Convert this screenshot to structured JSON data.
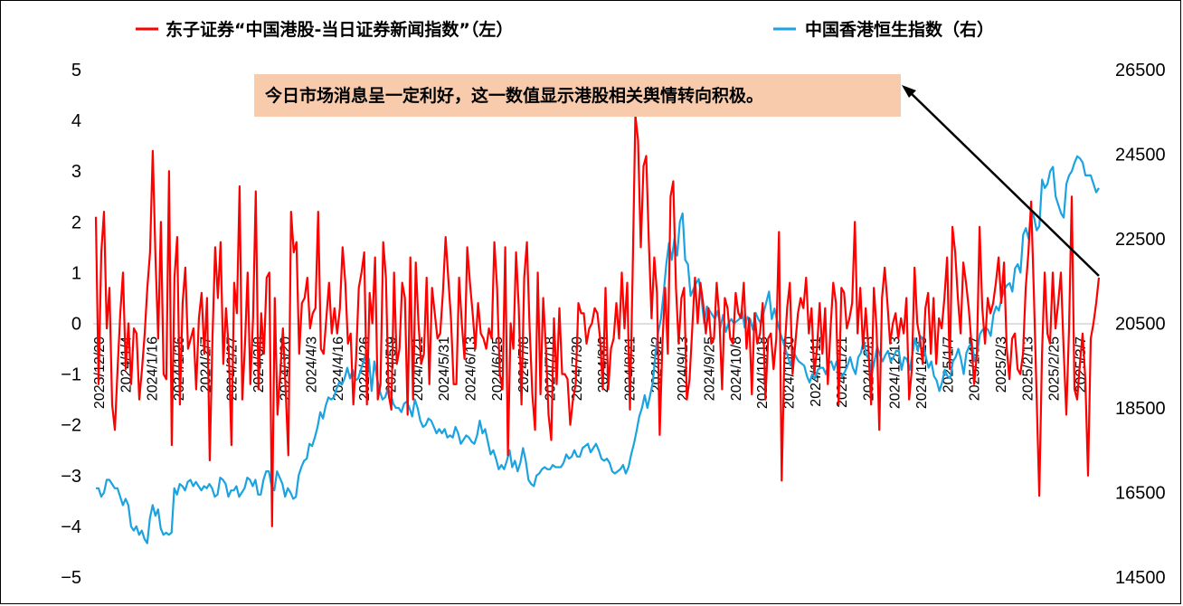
{
  "chart_data": {
    "type": "line",
    "title": "",
    "xlabel": "",
    "ylabel_left": "",
    "ylabel_right": "",
    "left_axis": {
      "min": -5,
      "max": 5,
      "ticks": [
        "5",
        "4",
        "3",
        "2",
        "1",
        "0",
        "−1",
        "−2",
        "−3",
        "−4",
        "−5"
      ]
    },
    "right_axis": {
      "min": 14500,
      "max": 26500,
      "ticks": [
        "26500",
        "24500",
        "22500",
        "20500",
        "18500",
        "16500",
        "14500"
      ]
    },
    "x_tick_labels": [
      "2023/12/20",
      "2024/1/4",
      "2024/1/16",
      "2024/1/26",
      "2024/2/7",
      "2024/2/27",
      "2024/3/8",
      "2024/3/20",
      "2024/4/3",
      "2024/4/16",
      "2024/4/26",
      "2024/5/9",
      "2024/5/21",
      "2024/5/31",
      "2024/6/13",
      "2024/6/25",
      "2024/7/8",
      "2024/7/18",
      "2024/7/30",
      "2024/8/9",
      "2024/8/21",
      "2024/9/2",
      "2024/9/13",
      "2024/9/25",
      "2024/10/8",
      "2024/10/18",
      "2024/10/30",
      "2024/11/11",
      "2024/11/21",
      "2024/12/3",
      "2024/12/13",
      "2024/12/25",
      "2025/1/7",
      "2025/1/17",
      "2025/2/3",
      "2025/2/13",
      "2025/2/25",
      "2025/3/7"
    ],
    "legend_position": "top",
    "grid": false,
    "series": [
      {
        "name": "东子证券“中国港股-当日证券新闻指数”（左）",
        "axis": "left",
        "color": "#ff0000",
        "values": [
          2.1,
          -1.2,
          1.4,
          2.2,
          -0.1,
          0.7,
          -1.6,
          -2.1,
          -0.9,
          0.2,
          1.0,
          -0.9,
          0.0,
          -1.2,
          -0.1,
          -0.2,
          -1.5,
          -0.9,
          -0.2,
          0.7,
          1.4,
          3.4,
          1.3,
          -0.3,
          2.0,
          -1.0,
          -1.1,
          3.0,
          -2.4,
          0.9,
          1.7,
          -1.6,
          0.4,
          1.1,
          -0.5,
          -0.3,
          -0.1,
          -1.3,
          0.1,
          0.6,
          -0.6,
          0.5,
          -2.7,
          -0.3,
          1.5,
          0.5,
          1.6,
          -0.8,
          0.3,
          -0.5,
          -2.4,
          0.8,
          0.2,
          2.7,
          -1.5,
          -0.4,
          1.0,
          -1.2,
          0.1,
          2.6,
          -1.3,
          0.2,
          -0.6,
          0.9,
          1.0,
          -4.0,
          0.5,
          -1.8,
          -1.0,
          -0.1,
          -1.3,
          -2.6,
          2.2,
          1.4,
          1.6,
          -0.6,
          0.4,
          0.5,
          0.9,
          -0.1,
          0.2,
          0.3,
          2.2,
          -0.5,
          -0.6,
          0.1,
          0.8,
          -0.2,
          0.3,
          -0.2,
          0.3,
          1.5,
          0.8,
          -0.4,
          -0.2,
          -1.6,
          -0.7,
          0.7,
          1.0,
          1.4,
          -1.6,
          0.6,
          0.0,
          1.3,
          -1.5,
          -1.2,
          1.6,
          0.9,
          -1.4,
          -1.7,
          1.0,
          -0.8,
          -0.5,
          0.8,
          0.5,
          -1.8,
          1.3,
          -1.5,
          1.2,
          0.0,
          -0.8,
          -0.6,
          0.9,
          -1.2,
          0.7,
          0.2,
          -0.3,
          -0.2,
          0.6,
          1.7,
          0.9,
          0.1,
          -1.2,
          -1.2,
          0.9,
          0.0,
          -0.7,
          1.5,
          0.8,
          0.2,
          -0.5,
          0.4,
          -0.2,
          -0.3,
          -0.5,
          -0.1,
          -0.3,
          1.6,
          0.7,
          -1.0,
          -1.3,
          1.5,
          -2.6,
          0.0,
          -0.5,
          1.4,
          0.3,
          -1.6,
          0.9,
          1.6,
          -0.1,
          -1.4,
          -2.1,
          1.0,
          -1.4,
          0.5,
          -0.5,
          -1.8,
          -2.3,
          0.1,
          -1.2,
          0.3,
          -1.0,
          -1.0,
          -1.1,
          -2.0,
          -1.5,
          -1.2,
          0.4,
          0.2,
          0.2,
          -0.4,
          -0.1,
          0.0,
          0.3,
          0.2,
          -0.3,
          -1.3,
          0.7,
          -1.3,
          -0.5,
          -0.3,
          0.4,
          -0.3,
          1.0,
          -0.1,
          0.8,
          -1.7,
          1.0,
          4.1,
          3.6,
          1.5,
          3.1,
          3.3,
          1.6,
          0.1,
          1.3,
          0.6,
          -2.2,
          -0.4,
          0.7,
          -0.6,
          2.5,
          2.8,
          0.7,
          -0.4,
          0.5,
          0.7,
          -1.5,
          -1.1,
          -0.1,
          0.9,
          0.0,
          0.8,
          0.4,
          -0.2,
          0.3,
          -0.4,
          -0.3,
          0.8,
          0.1,
          -1.3,
          0.5,
          0.3,
          -0.3,
          -0.4,
          0.6,
          0.2,
          0.1,
          0.8,
          -0.5,
          0.1,
          -1.4,
          0.2,
          -0.4,
          -0.2,
          0.4,
          -1.5,
          -0.3,
          -0.2,
          -0.9,
          -0.3,
          1.8,
          -3.1,
          -0.6,
          0.3,
          0.8,
          -1.0,
          -0.4,
          0.2,
          0.5,
          0.3,
          0.9,
          -0.2,
          0.3,
          -1.0,
          -0.5,
          0.4,
          -0.6,
          0.3,
          -1.2,
          -0.1,
          0.8,
          0.4,
          -1.6,
          0.7,
          0.6,
          -0.1,
          0.1,
          0.4,
          2.0,
          -0.2,
          0.7,
          -0.5,
          0.3,
          -0.5,
          -1.6,
          0.7,
          -0.1,
          -2.1,
          0.5,
          1.1,
          0.4,
          -0.4,
          0.0,
          0.2,
          -0.3,
          0.1,
          -0.2,
          0.5,
          -1.5,
          -0.9,
          1.1,
          0.0,
          -0.3,
          -0.8,
          0.3,
          0.6,
          -0.6,
          0.5,
          -0.8,
          0.1,
          -0.1,
          0.5,
          1.3,
          -0.9,
          1.9,
          1.4,
          0.5,
          -0.2,
          1.2,
          0.8,
          0.3,
          -0.4,
          -1.2,
          -0.6,
          1.9,
          0.3,
          -0.4,
          0.5,
          0.2,
          0.4,
          0.8,
          1.3,
          0.4,
          1.2,
          -0.5,
          -1.1,
          -0.3,
          -0.2,
          -0.9,
          -1.0,
          -0.6,
          0.7,
          1.4,
          2.4,
          0.6,
          -1.4,
          -3.4,
          -0.6,
          1.0,
          -0.2,
          -0.4,
          1.0,
          -0.1,
          0.4,
          1.0,
          -0.5,
          -1.8,
          -0.1,
          2.5,
          -1.3,
          -1.5,
          -0.8,
          -0.2,
          -1.1,
          -3.0,
          -0.3,
          0.0,
          0.4,
          0.9
        ]
      },
      {
        "name": "中国香港恒生指数（右）",
        "axis": "right",
        "color": "#1aa3e0",
        "values": [
          16600,
          16600,
          16400,
          16500,
          16800,
          16800,
          16700,
          16600,
          16600,
          16400,
          16200,
          16350,
          16200,
          15700,
          15600,
          15700,
          15500,
          15600,
          15400,
          15300,
          15900,
          16200,
          15950,
          16100,
          15650,
          15500,
          15550,
          15500,
          15550,
          16600,
          16450,
          16700,
          16650,
          16550,
          16750,
          16800,
          16650,
          16750,
          16650,
          16550,
          16650,
          16600,
          16700,
          16600,
          16400,
          16450,
          16850,
          16800,
          16700,
          16400,
          16550,
          16550,
          16650,
          16400,
          16500,
          16600,
          16850,
          16800,
          16650,
          16800,
          16450,
          16450,
          16800,
          17000,
          17000,
          16650,
          16550,
          17000,
          16850,
          16700,
          16400,
          16600,
          16500,
          16350,
          16400,
          16900,
          17100,
          17250,
          17300,
          17650,
          17600,
          17800,
          18050,
          18400,
          18250,
          18550,
          18750,
          18700,
          18750,
          18950,
          19100,
          19050,
          19200,
          19450,
          19200,
          19400,
          19150,
          19200,
          19400,
          19600,
          19800,
          19650,
          18900,
          19600,
          19200,
          18900,
          18700,
          18750,
          18950,
          18850,
          18600,
          18500,
          18500,
          18400,
          18600,
          18650,
          18500,
          18300,
          18700,
          18500,
          18200,
          18050,
          18100,
          18250,
          18200,
          18050,
          17900,
          18000,
          17900,
          18000,
          17800,
          17850,
          17800,
          18050,
          17900,
          17650,
          17750,
          17850,
          17800,
          17700,
          17650,
          17850,
          18200,
          17900,
          18000,
          17700,
          17400,
          17500,
          17300,
          17050,
          17150,
          17050,
          17250,
          17500,
          17100,
          17250,
          17000,
          17200,
          17550,
          17250,
          16800,
          16700,
          16650,
          16900,
          16950,
          17050,
          17100,
          17050,
          17050,
          17150,
          17100,
          17100,
          17100,
          17200,
          17400,
          17300,
          17350,
          17500,
          17350,
          17350,
          17550,
          17600,
          17650,
          17450,
          17550,
          17650,
          17500,
          17300,
          17250,
          17300,
          17200,
          17000,
          16950,
          17000,
          17050,
          17150,
          16950,
          17100,
          17400,
          17650,
          17950,
          18300,
          18500,
          18800,
          18500,
          18800,
          19100,
          19800,
          20300,
          20600,
          21200,
          21900,
          22400,
          22000,
          22500,
          22100,
          22900,
          23100,
          22000,
          21900,
          21150,
          21300,
          21450,
          21550,
          21100,
          20500,
          20900,
          20800,
          20700,
          20600,
          20800,
          20400,
          20700,
          20300,
          20500,
          20600,
          20500,
          20550,
          20600,
          20800,
          20400,
          20650,
          20600,
          20350,
          20750,
          20600,
          20500,
          20750,
          21000,
          21250,
          20600,
          20850,
          20550,
          20300,
          20100,
          19900,
          19700,
          19500,
          19850,
          19700,
          19600,
          19550,
          19500,
          19250,
          19100,
          19300,
          19200,
          19400,
          19450,
          19450,
          19300,
          19550,
          19600,
          19400,
          19600,
          19300,
          19250,
          19350,
          19500,
          19700,
          19450,
          19300,
          19700,
          19800,
          20100,
          19750,
          19650,
          19300,
          19600,
          19950,
          19750,
          19600,
          19750,
          19850,
          19600,
          19700,
          19850,
          19850,
          19400,
          19700,
          19650,
          19400,
          19750,
          20150,
          19850,
          20200,
          20100,
          19700,
          19450,
          19600,
          19250,
          19150,
          18900,
          19100,
          19400,
          19250,
          19200,
          19600,
          19700,
          19900,
          19650,
          19300,
          19800,
          19950,
          20050,
          19600,
          19800,
          20250,
          20350,
          20400,
          20350,
          20200,
          20700,
          20900,
          20800,
          21100,
          21300,
          21400,
          21450,
          21250,
          21800,
          21900,
          21700,
          22600,
          22750,
          22500,
          23200,
          23000,
          22700,
          22800,
          23900,
          23700,
          23800,
          24100,
          24200,
          23500,
          23300,
          23100,
          23000,
          23800,
          24000,
          24100,
          24300,
          24450,
          24400,
          24300,
          24000,
          24000,
          24000,
          23800,
          23600,
          23700
        ]
      }
    ],
    "legend": {
      "series_1": "东子证券“中国港股-当日证券新闻指数”（左）",
      "series_2": "中国香港恒生指数（右）"
    },
    "annotation": {
      "text": "今日市场消息呈一定利好，这一数值显示港股相关舆情转向积极。",
      "background": "#f8cbad",
      "arrow_color": "#000000"
    }
  }
}
